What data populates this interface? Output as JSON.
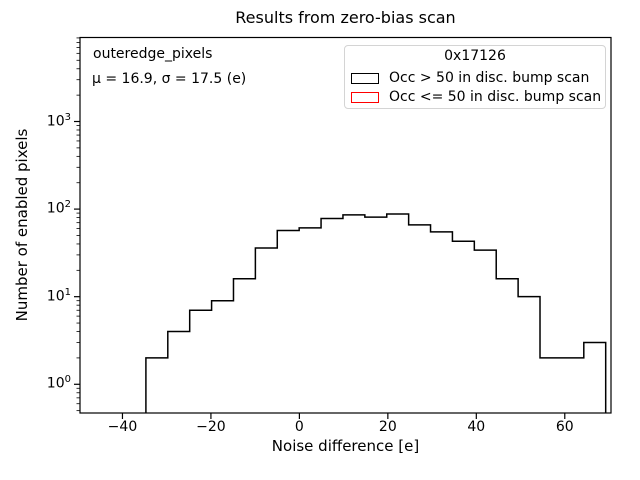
{
  "chart_data": {
    "type": "histogram",
    "histtype": "step",
    "title": "Results from zero-bias scan",
    "xlabel": "Noise difference [e]",
    "ylabel": "Number of enabled pixels",
    "yscale": "log",
    "grid": false,
    "xlim": [
      -49.6,
      70.45
    ],
    "ylim": [
      0.47,
      9100
    ],
    "x_ticks": [
      -40,
      -20,
      0,
      20,
      40,
      60
    ],
    "y_tick_exponents": [
      0,
      1,
      2,
      3
    ],
    "annotation": {
      "line1": "outeredge_pixels",
      "line2": "μ = 16.9, σ = 17.5 (e)"
    },
    "legend": {
      "title": "0x17126",
      "position": "upper right",
      "entries": [
        {
          "label": "Occ > 50 in disc. bump scan",
          "edge_color": "#000000"
        },
        {
          "label": "Occ <= 50 in disc. bump scan",
          "edge_color": "#ff0000"
        }
      ]
    },
    "series": [
      {
        "name": "Occ > 50 in disc. bump scan",
        "color": "#000000",
        "bin_edges": [
          -34.7,
          -29.75,
          -24.8,
          -19.85,
          -14.9,
          -9.95,
          -5.0,
          -0.05,
          4.9,
          9.85,
          14.8,
          19.75,
          24.7,
          29.65,
          34.6,
          39.55,
          44.5,
          49.45,
          54.4,
          59.35,
          64.3,
          69.25
        ],
        "counts": [
          2,
          4,
          7,
          9,
          16,
          36,
          57,
          61,
          78,
          86,
          81,
          88,
          66,
          55,
          43,
          34,
          16,
          10,
          2,
          2,
          3
        ]
      },
      {
        "name": "Occ <= 50 in disc. bump scan",
        "color": "#ff0000",
        "bin_edges": [],
        "counts": []
      }
    ]
  }
}
